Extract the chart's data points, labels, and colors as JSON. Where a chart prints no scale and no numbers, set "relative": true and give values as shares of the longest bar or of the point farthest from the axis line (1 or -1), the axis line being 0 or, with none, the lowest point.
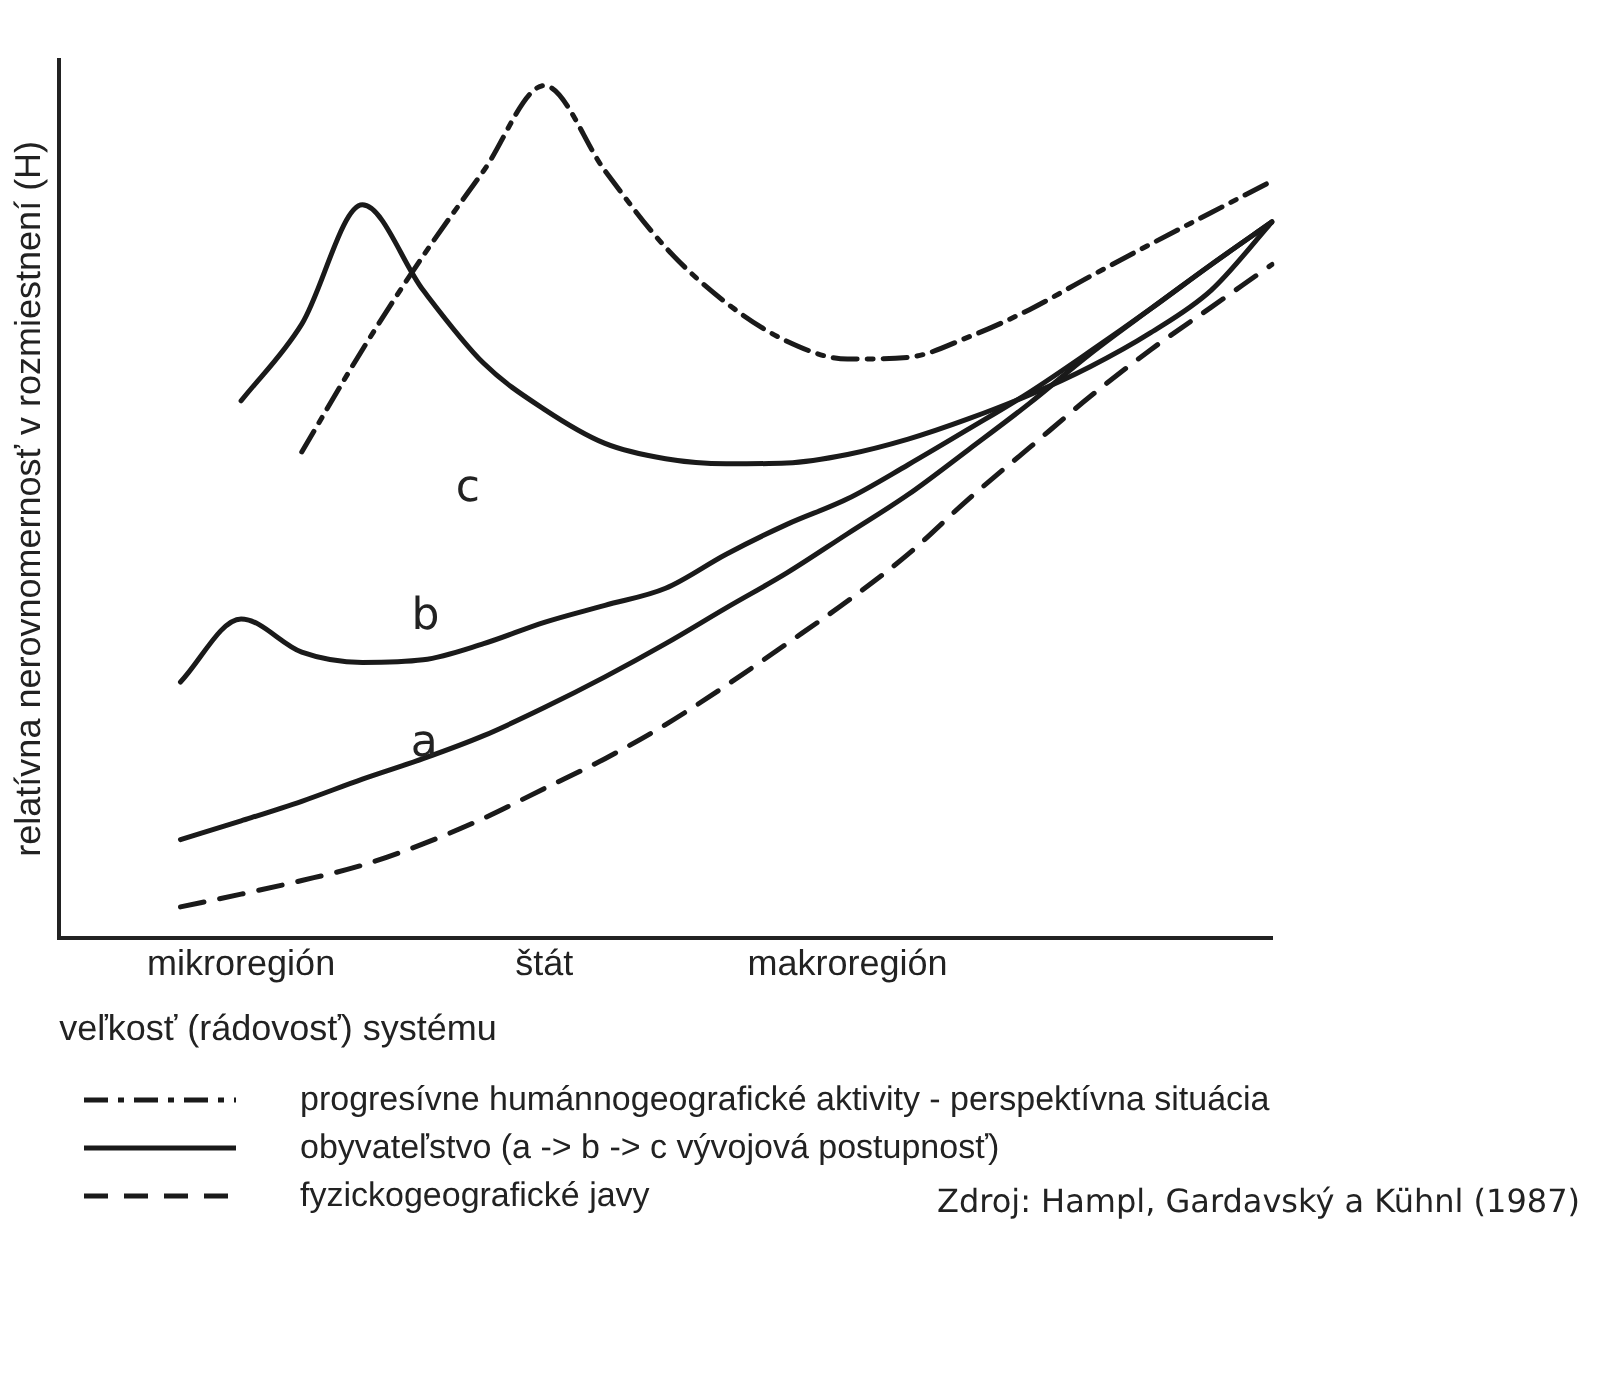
{
  "chart_data": {
    "type": "line",
    "relative": true,
    "xlabel": "veľkosť (rádovosť) systému",
    "ylabel": "relatívna nerovnomernosť v rozmiestnení (H)",
    "categories": [
      null,
      null,
      null,
      "mikroregión",
      null,
      null,
      null,
      null,
      "štát",
      null,
      null,
      null,
      null,
      "makroregión",
      null,
      null,
      null,
      null,
      null,
      null,
      null
    ],
    "tick_labels": "x",
    "grid": false,
    "legend": "bottom",
    "marker": "none",
    "series": [
      {
        "name": "progresívne humánnogeografické aktivity - perspektívna situácia",
        "color": "#1a1a1a",
        "line_style": "dashdot",
        "values": [
          null,
          null,
          null,
          null,
          0.57,
          0.69,
          0.8,
          0.9,
          1.0,
          0.9,
          0.81,
          0.745,
          0.7,
          0.679,
          0.681,
          0.705,
          0.737,
          0.776,
          0.814,
          0.851,
          0.888
        ]
      },
      {
        "name": "obyvateľstvo (a -> b -> c vývojová postupnosť)",
        "color": "#1a1a1a",
        "line_style": "solid",
        "values": [
          null,
          null,
          null,
          0.63,
          0.72,
          0.86,
          0.76,
          0.674,
          0.62,
          0.58,
          0.562,
          0.556,
          0.557,
          0.567,
          0.585,
          0.609,
          0.637,
          0.67,
          0.71,
          0.76,
          0.84
        ]
      },
      {
        "color": "#1a1a1a",
        "line_style": "solid",
        "values": [
          null,
          null,
          0.3,
          0.374,
          0.335,
          0.323,
          0.326,
          0.345,
          0.37,
          0.39,
          0.41,
          0.45,
          0.485,
          0.515,
          0.555,
          0.597,
          0.64,
          0.688,
          0.738,
          0.79,
          0.84
        ]
      },
      {
        "color": "#1a1a1a",
        "line_style": "solid",
        "values": [
          null,
          null,
          0.115,
          0.137,
          0.16,
          0.186,
          0.21,
          0.237,
          0.27,
          0.306,
          0.345,
          0.387,
          0.428,
          0.474,
          0.52,
          0.573,
          0.627,
          0.685,
          0.738,
          0.79,
          0.84
        ]
      },
      {
        "name": "fyzickogeografické javy",
        "color": "#1a1a1a",
        "line_style": "dashed",
        "values": [
          null,
          null,
          0.036,
          0.051,
          0.067,
          0.085,
          0.11,
          0.14,
          0.175,
          0.21,
          0.25,
          0.296,
          0.345,
          0.395,
          0.45,
          0.515,
          0.575,
          0.635,
          0.69,
          0.74,
          0.79
        ]
      }
    ],
    "annotations": [
      "c",
      "b",
      "a",
      "Zdroj: Hampl, Gardavský a Kühnl (1987)"
    ]
  }
}
